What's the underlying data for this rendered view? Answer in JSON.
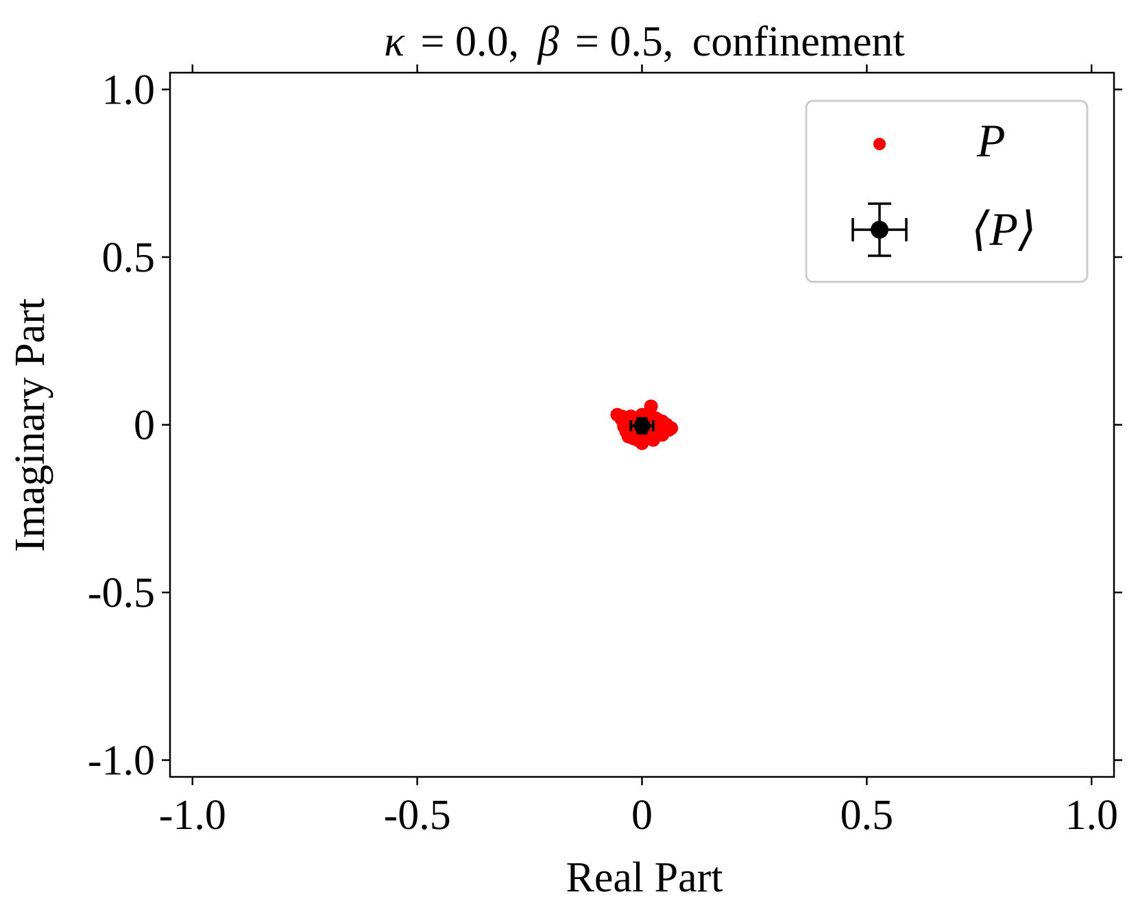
{
  "chart_data": {
    "type": "scatter",
    "title_parts": {
      "kappa_symbol": "κ",
      "kappa_eq": "= 0.0,",
      "beta_symbol": "β",
      "beta_eq": "= 0.5,",
      "phase": "confinement"
    },
    "xlabel": "Real Part",
    "ylabel": "Imaginary Part",
    "xlim": [
      -1.05,
      1.05
    ],
    "ylim": [
      -1.05,
      1.05
    ],
    "xticks": [
      {
        "value": -1.0,
        "label": "-1.0"
      },
      {
        "value": -0.5,
        "label": "-0.5"
      },
      {
        "value": 0,
        "label": "0"
      },
      {
        "value": 0.5,
        "label": "0.5"
      },
      {
        "value": 1.0,
        "label": "1.0"
      }
    ],
    "yticks": [
      {
        "value": 1.0,
        "label": "1.0"
      },
      {
        "value": 0.5,
        "label": "0.5"
      },
      {
        "value": 0,
        "label": "0"
      },
      {
        "value": -0.5,
        "label": "-0.5"
      },
      {
        "value": -1.0,
        "label": "-1.0"
      }
    ],
    "grid": false,
    "legend_position": "top-right",
    "series": [
      {
        "name": "P",
        "kind": "points",
        "color": "#ff0000",
        "points": [
          [
            -0.055,
            0.03
          ],
          [
            -0.045,
            0.025
          ],
          [
            -0.035,
            0.02
          ],
          [
            -0.025,
            0.025
          ],
          [
            -0.015,
            0.02
          ],
          [
            -0.005,
            0.015
          ],
          [
            0.01,
            0.025
          ],
          [
            0.02,
            0.055
          ],
          [
            0.015,
            0.035
          ],
          [
            0.03,
            0.02
          ],
          [
            0.045,
            0.01
          ],
          [
            0.055,
            0.0
          ],
          [
            0.06,
            -0.015
          ],
          [
            0.05,
            -0.01
          ],
          [
            0.04,
            -0.025
          ],
          [
            0.03,
            -0.03
          ],
          [
            0.02,
            -0.02
          ],
          [
            0.01,
            -0.04
          ],
          [
            0.0,
            -0.055
          ],
          [
            -0.01,
            -0.045
          ],
          [
            -0.02,
            -0.04
          ],
          [
            -0.03,
            -0.035
          ],
          [
            -0.035,
            -0.02
          ],
          [
            -0.04,
            -0.005
          ],
          [
            -0.03,
            0.0
          ],
          [
            -0.02,
            -0.01
          ],
          [
            -0.01,
            0.0
          ],
          [
            0.0,
            0.01
          ],
          [
            0.01,
            -0.01
          ],
          [
            0.02,
            0.005
          ],
          [
            0.03,
            0.005
          ],
          [
            -0.025,
            -0.025
          ],
          [
            0.005,
            -0.025
          ],
          [
            0.045,
            -0.03
          ],
          [
            0.065,
            -0.01
          ],
          [
            -0.045,
            0.015
          ],
          [
            -0.015,
            -0.03
          ],
          [
            0.025,
            -0.045
          ],
          [
            0.0,
            0.03
          ],
          [
            0.035,
            0.015
          ]
        ]
      },
      {
        "name": "⟨P⟩",
        "kind": "errorbar",
        "color": "#000000",
        "x": 0.0,
        "y": -0.003,
        "xerr": 0.025,
        "yerr": 0.022
      }
    ]
  }
}
